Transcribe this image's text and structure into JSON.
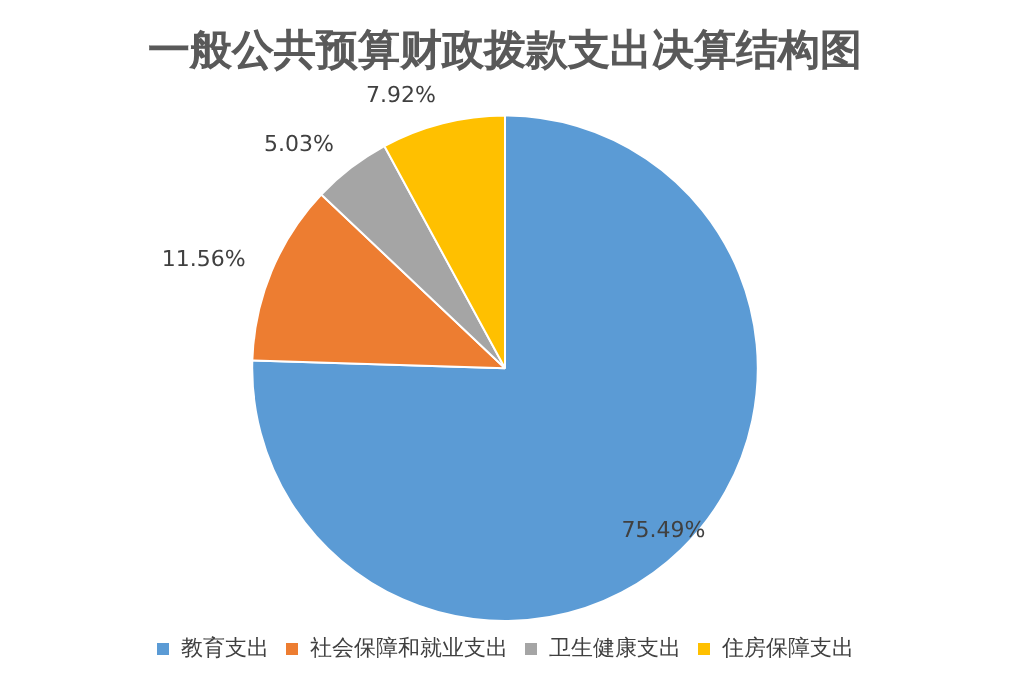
{
  "chart_data": {
    "type": "pie",
    "title": "一般公共预算财政拨款支出决算结构图",
    "categories": [
      "教育支出",
      "社会保障和就业支出",
      "卫生健康支出",
      "住房保障支出"
    ],
    "values": [
      75.49,
      11.56,
      5.03,
      7.92
    ],
    "colors": [
      "#5b9bd5",
      "#ed7d31",
      "#a5a5a5",
      "#ffc000"
    ],
    "value_labels": [
      "75.49%",
      "11.56%",
      "5.03%",
      "7.92%"
    ],
    "legend": "bottom"
  }
}
